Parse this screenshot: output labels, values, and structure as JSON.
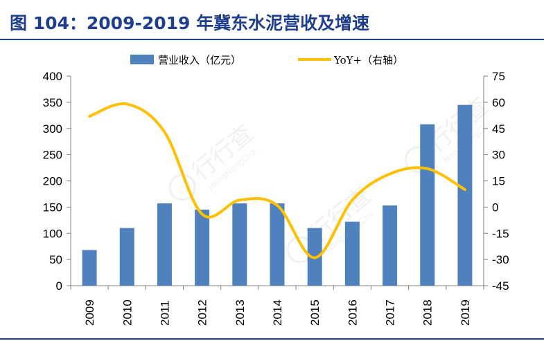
{
  "title": "图 104：2009-2019 年冀东水泥营收及增速",
  "watermark": "行行查",
  "watermark_sub": "HangHangCha",
  "colors": {
    "title": "#1f3f8c",
    "bar": "#4f81bd",
    "line": "#ffc000",
    "axis": "#808080"
  },
  "chart_data": {
    "type": "bar+line",
    "categories": [
      "2009",
      "2010",
      "2011",
      "2012",
      "2013",
      "2014",
      "2015",
      "2016",
      "2017",
      "2018",
      "2019"
    ],
    "series": [
      {
        "name": "营业收入（亿元）",
        "type": "bar",
        "axis": "left",
        "values": [
          68,
          110,
          157,
          145,
          157,
          157,
          110,
          122,
          153,
          308,
          345
        ]
      },
      {
        "name": "YoY+（右轴）",
        "type": "line",
        "axis": "right",
        "values": [
          52,
          59,
          43,
          -4,
          4,
          1,
          -29,
          4,
          19,
          22,
          10
        ]
      }
    ],
    "y_left": {
      "min": 0,
      "max": 400,
      "ticks": [
        "0",
        "50",
        "100",
        "150",
        "200",
        "250",
        "300",
        "350",
        "400"
      ]
    },
    "y_right": {
      "min": -45,
      "max": 75,
      "ticks": [
        "-45",
        "-30",
        "-15",
        "0",
        "15",
        "30",
        "45",
        "60",
        "75"
      ]
    },
    "legend_position": "top-center",
    "grid": false
  }
}
